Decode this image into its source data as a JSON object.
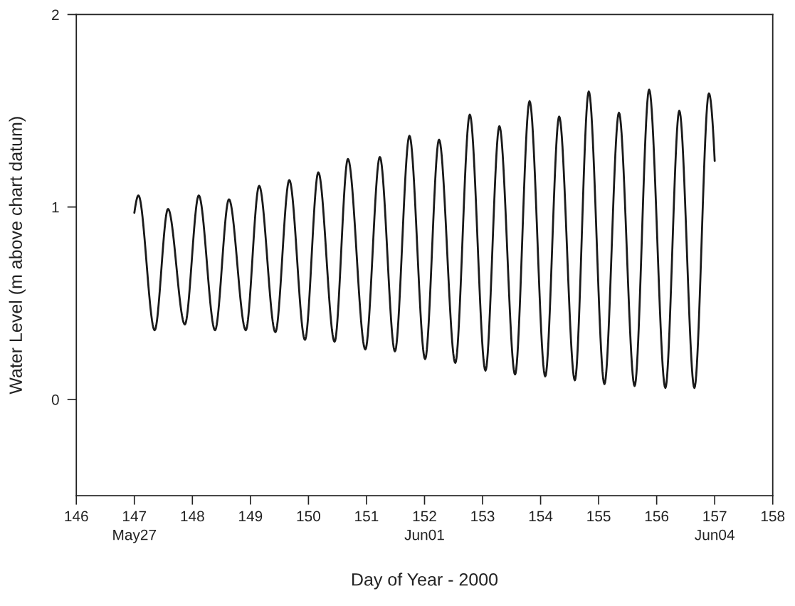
{
  "chart_data": {
    "type": "line",
    "xlabel": "Day of Year - 2000",
    "ylabel": "Water Level (m above chart datum)",
    "x": [
      147.0,
      147.07,
      147.35,
      147.58,
      147.87,
      148.11,
      148.39,
      148.63,
      148.92,
      149.15,
      149.43,
      149.67,
      149.94,
      150.17,
      150.45,
      150.68,
      150.98,
      151.23,
      151.49,
      151.74,
      152.01,
      152.25,
      152.53,
      152.78,
      153.05,
      153.29,
      153.56,
      153.81,
      154.08,
      154.32,
      154.59,
      154.83,
      155.1,
      155.35,
      155.62,
      155.87,
      156.15,
      156.39,
      156.65,
      156.9,
      157.0
    ],
    "series": [
      {
        "color": "#1a1a1a",
        "values": [
          0.97,
          1.06,
          0.36,
          0.99,
          0.39,
          1.06,
          0.36,
          1.04,
          0.36,
          1.11,
          0.35,
          1.14,
          0.31,
          1.18,
          0.3,
          1.25,
          0.26,
          1.26,
          0.25,
          1.37,
          0.21,
          1.35,
          0.19,
          1.48,
          0.15,
          1.42,
          0.13,
          1.55,
          0.12,
          1.47,
          0.1,
          1.6,
          0.08,
          1.49,
          0.07,
          1.61,
          0.06,
          1.5,
          0.06,
          1.59,
          1.24
        ]
      }
    ],
    "xlim": [
      146,
      158
    ],
    "xticks": [
      146,
      {
        "value": 147,
        "label": "147\nMay27"
      },
      148,
      149,
      150,
      151,
      {
        "value": 152,
        "label": "152\nJun01"
      },
      153,
      154,
      155,
      156,
      {
        "value": 157,
        "label": "157\nJun04"
      },
      158
    ],
    "ylim": [
      -0.5,
      2
    ],
    "yticks": [
      0,
      1,
      2
    ],
    "line_style": "solid"
  }
}
